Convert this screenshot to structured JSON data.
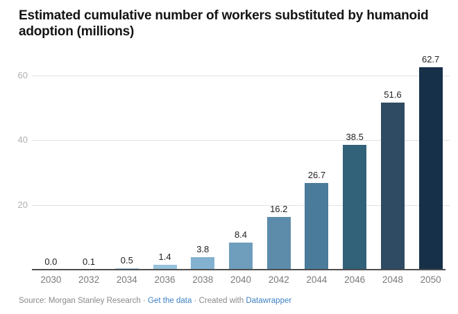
{
  "header": {
    "title": "Estimated cumulative number of workers substituted by humanoid adoption (millions)"
  },
  "chart_data": {
    "type": "bar",
    "title": "Estimated cumulative number of workers substituted by humanoid adoption (millions)",
    "categories": [
      "2030",
      "2032",
      "2034",
      "2036",
      "2038",
      "2040",
      "2042",
      "2044",
      "2046",
      "2048",
      "2050"
    ],
    "values": [
      0.0,
      0.1,
      0.5,
      1.4,
      3.8,
      8.4,
      16.2,
      26.7,
      38.5,
      51.6,
      62.7
    ],
    "value_labels": [
      "0.0",
      "0.1",
      "0.5",
      "1.4",
      "3.8",
      "8.4",
      "16.2",
      "26.7",
      "38.5",
      "51.6",
      "62.7"
    ],
    "bar_colors": [
      "#b9d5e8",
      "#aecfe4",
      "#a2c9e1",
      "#97c1db",
      "#83b2d1",
      "#6f9dbc",
      "#5d8cab",
      "#4a7b9a",
      "#316279",
      "#2e4b63",
      "#173049"
    ],
    "xlabel": "",
    "ylabel": "",
    "ylim": [
      0,
      65
    ],
    "yticks": [
      20,
      40,
      60
    ],
    "ytick_labels": [
      "20",
      "40",
      "60"
    ],
    "grid": "horizontal",
    "legend": "none"
  },
  "footer": {
    "source_text": "Source: Morgan Stanley Research",
    "separator": "·",
    "get_data_label": "Get the data",
    "created_with_label": "Created with",
    "datawrapper_label": "Datawrapper",
    "link_color": "#3f82c4"
  },
  "style_colors": {
    "background": "#ffffff",
    "title": "#141414",
    "gridline": "#e2e2e2",
    "y_tick": "#b0b0b0",
    "x_tick": "#7a7a7a",
    "value_label": "#1f1f1f",
    "axis_line": "#4d4d4d"
  }
}
